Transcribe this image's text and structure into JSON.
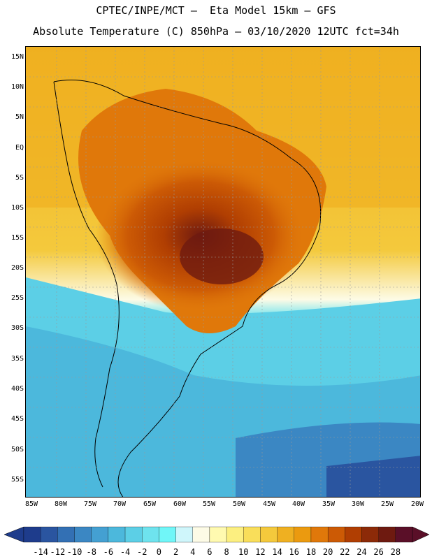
{
  "title_line1": "CPTEC/INPE/MCT –  Eta Model 15km – GFS",
  "title_line2": "Absolute Temperature (C) 850hPa – 03/10/2020 12UTC fct=34h",
  "lat_labels": [
    "15N",
    "10N",
    "5N",
    "EQ",
    "5S",
    "10S",
    "15S",
    "20S",
    "25S",
    "30S",
    "35S",
    "40S",
    "45S",
    "50S",
    "55S"
  ],
  "lon_labels": [
    "85W",
    "80W",
    "75W",
    "70W",
    "65W",
    "60W",
    "55W",
    "50W",
    "45W",
    "40W",
    "35W",
    "30W",
    "25W",
    "20W"
  ],
  "colorbar": {
    "ticks": [
      "-14",
      "-12",
      "-10",
      "-8",
      "-6",
      "-4",
      "-2",
      "0",
      "2",
      "4",
      "6",
      "8",
      "10",
      "12",
      "14",
      "16",
      "18",
      "20",
      "22",
      "24",
      "26",
      "28"
    ],
    "colors": [
      "#1e3c8c",
      "#2a55a0",
      "#3370b4",
      "#3b87c3",
      "#44a0d2",
      "#4cb8dc",
      "#5ccfe6",
      "#6ee3ee",
      "#70f6f8",
      "#cff6fb",
      "#fdfbe6",
      "#fffab0",
      "#fcef80",
      "#f9de5a",
      "#f4c93c",
      "#efb021",
      "#eb9a0f",
      "#e0780a",
      "#cc5a05",
      "#b03e02",
      "#8c2a08",
      "#6e1a10",
      "#5a0f28"
    ]
  },
  "icons": {
    "left_arrow": "left-arrow-icon",
    "right_arrow": "right-arrow-icon"
  }
}
